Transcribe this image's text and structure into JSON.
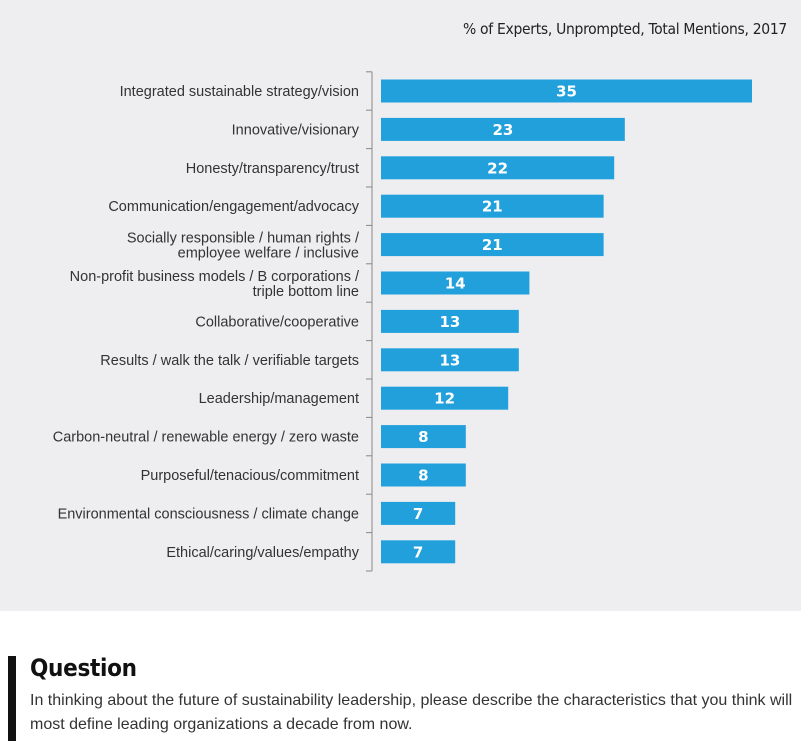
{
  "chart_data": {
    "type": "bar",
    "orientation": "horizontal",
    "subtitle": "% of Experts, Unprompted, Total Mentions, 2017",
    "categories": [
      [
        "Integrated sustainable strategy/vision"
      ],
      [
        "Innovative/visionary"
      ],
      [
        "Honesty/transparency/trust"
      ],
      [
        "Communication/engagement/advocacy"
      ],
      [
        "Socially responsible / human rights /",
        "employee welfare / inclusive"
      ],
      [
        "Non-profit business models / B corporations /",
        "triple bottom line"
      ],
      [
        "Collaborative/cooperative"
      ],
      [
        "Results / walk the talk / verifiable targets"
      ],
      [
        "Leadership/management"
      ],
      [
        "Carbon-neutral / renewable energy / zero waste"
      ],
      [
        "Purposeful/tenacious/commitment"
      ],
      [
        "Environmental consciousness / climate change"
      ],
      [
        "Ethical/caring/values/empathy"
      ]
    ],
    "values": [
      35,
      23,
      22,
      21,
      21,
      14,
      13,
      13,
      12,
      8,
      8,
      7,
      7
    ],
    "bar_color": "#22a0dc",
    "xlim": [
      0,
      40
    ],
    "grid": false,
    "legend": "none"
  },
  "question": {
    "title": "Question",
    "text": "In thinking about the future of sustainability leadership, please describe the characteristics that you think will most define leading organizations a decade from now."
  }
}
